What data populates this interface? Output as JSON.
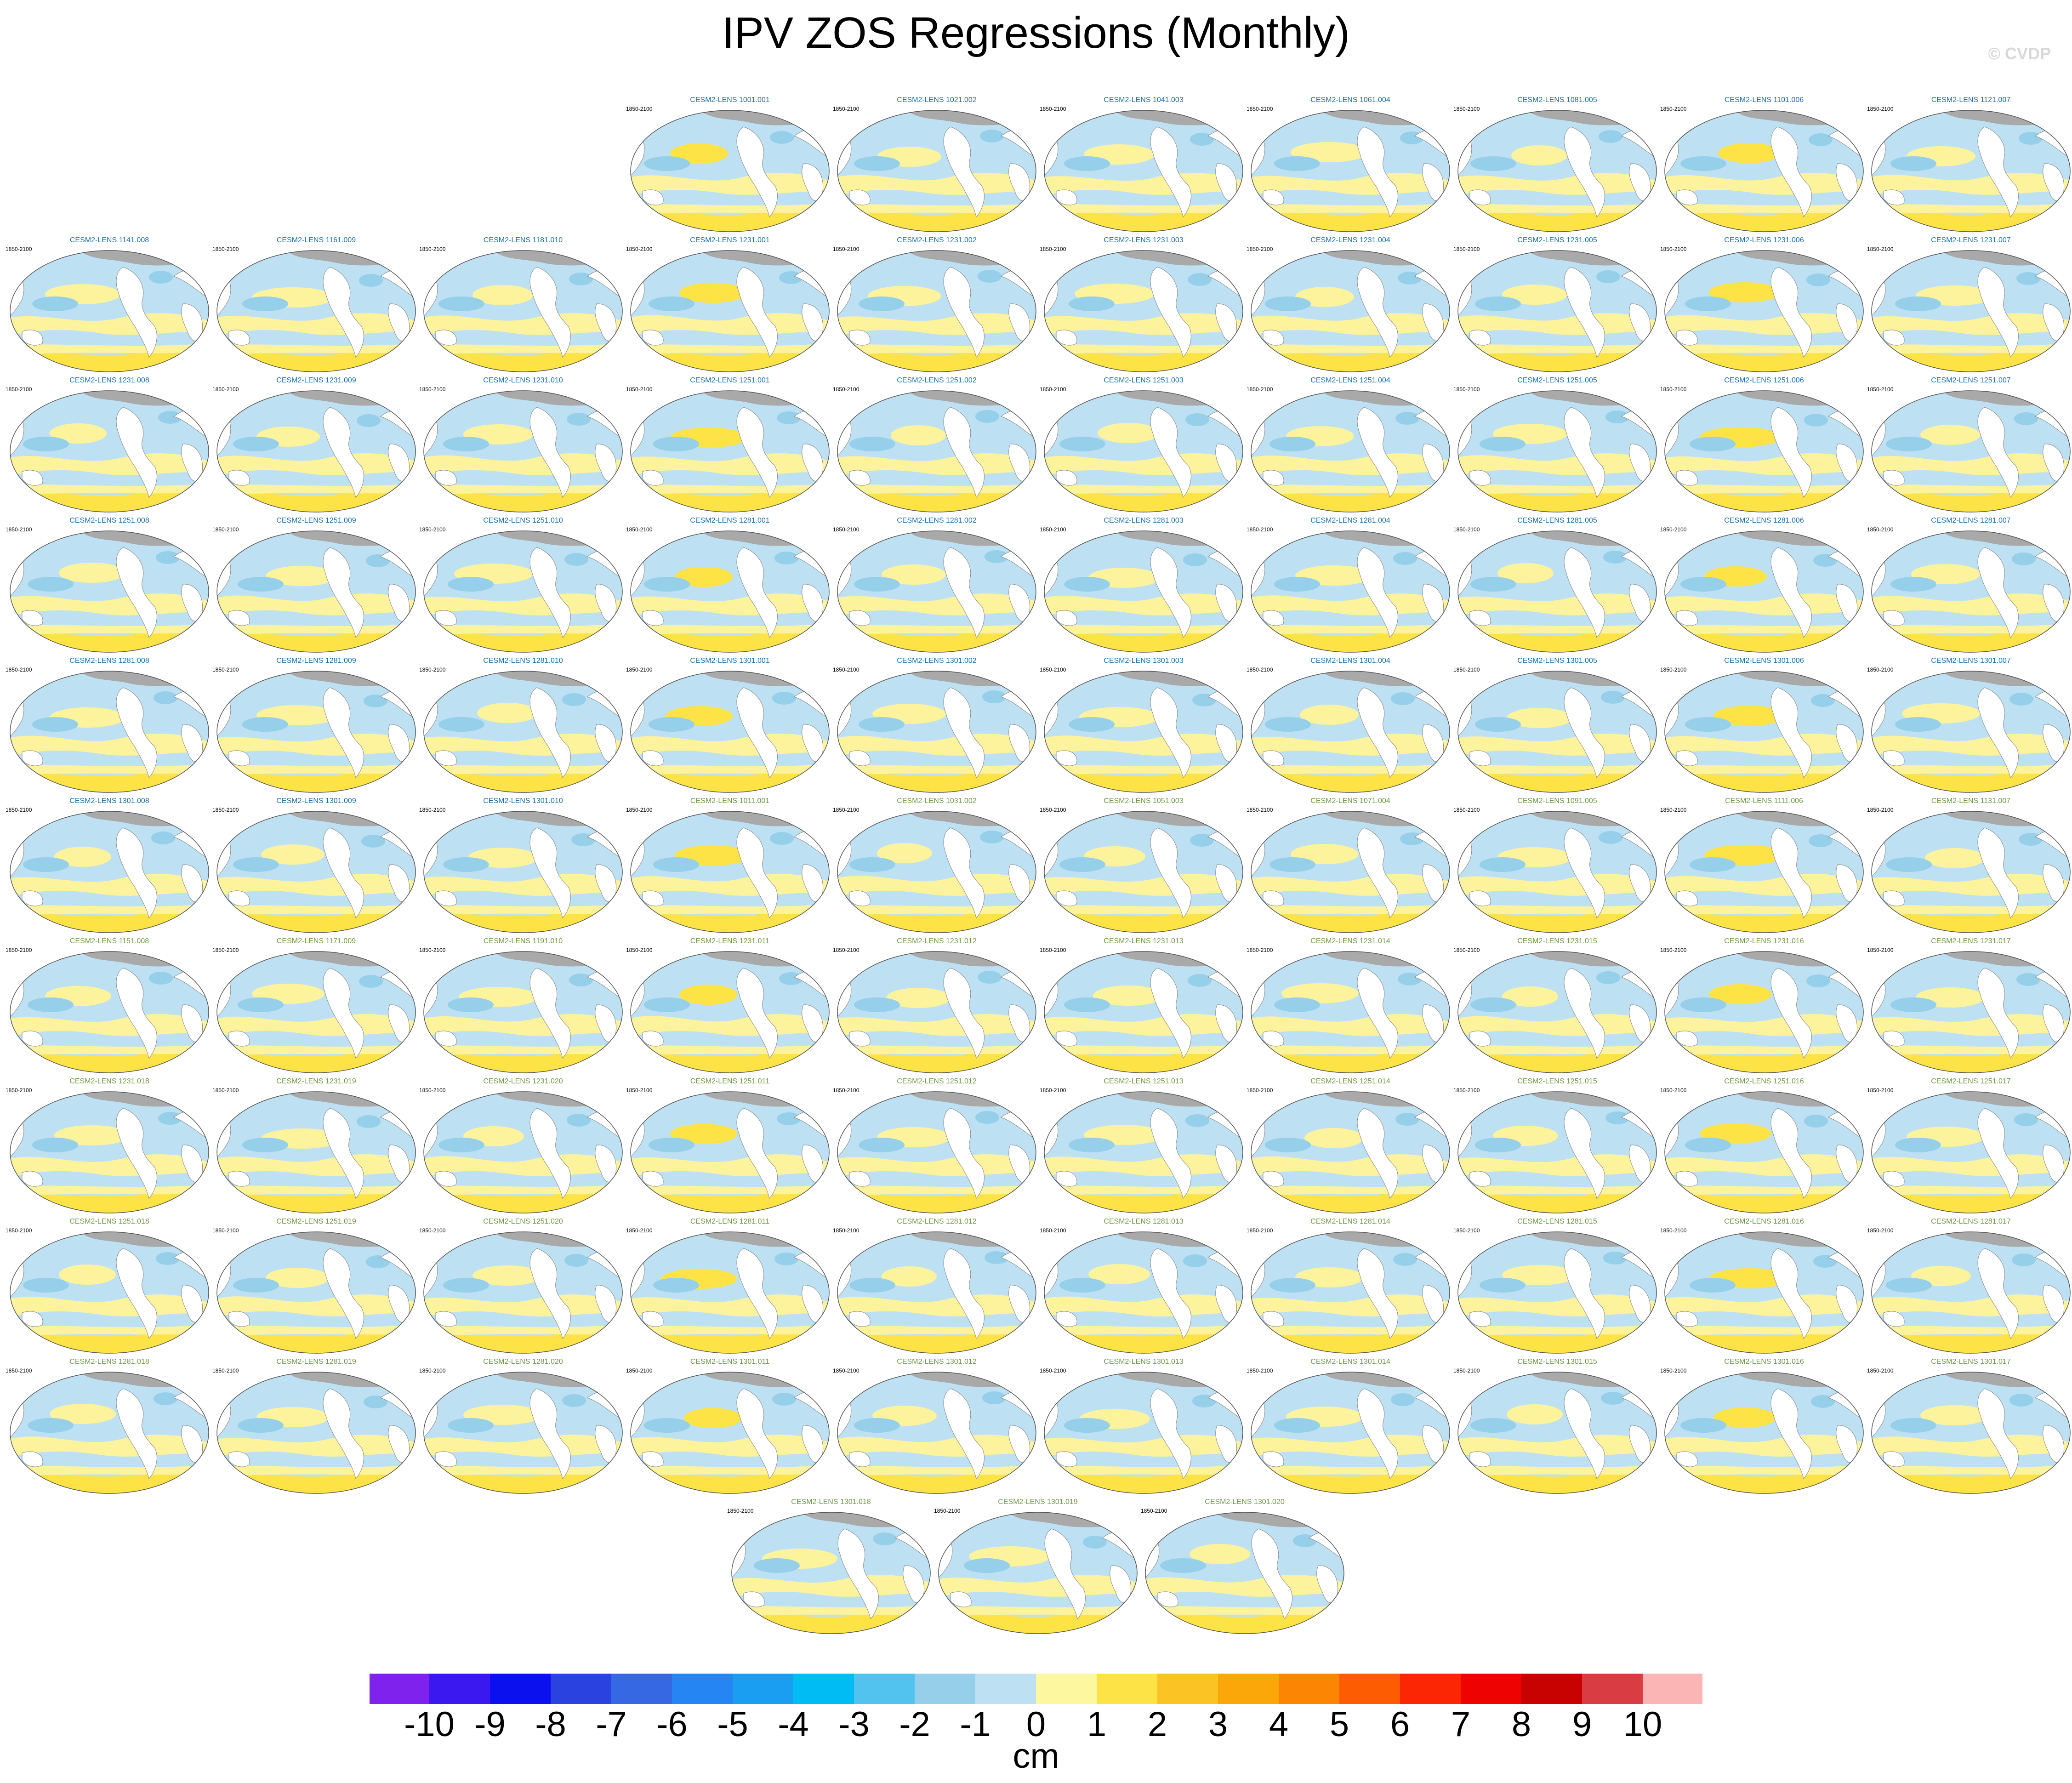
{
  "title": "IPV ZOS Regressions (Monthly)",
  "credit": "© CVDP",
  "period_label": "1850-2100",
  "title_colors": {
    "primary": "#1a6fae",
    "secondary": "#6e9a42"
  },
  "panel_rows": [
    [
      "CESM2-LENS 1001.001",
      "CESM2-LENS 1021.002",
      "CESM2-LENS 1041.003",
      "CESM2-LENS 1061.004",
      "CESM2-LENS 1081.005",
      "CESM2-LENS 1101.006",
      "CESM2-LENS 1121.007"
    ],
    [
      "CESM2-LENS 1141.008",
      "CESM2-LENS 1161.009",
      "CESM2-LENS 1181.010",
      "CESM2-LENS 1231.001",
      "CESM2-LENS 1231.002",
      "CESM2-LENS 1231.003",
      "CESM2-LENS 1231.004",
      "CESM2-LENS 1231.005",
      "CESM2-LENS 1231.006",
      "CESM2-LENS 1231.007"
    ],
    [
      "CESM2-LENS 1231.008",
      "CESM2-LENS 1231.009",
      "CESM2-LENS 1231.010",
      "CESM2-LENS 1251.001",
      "CESM2-LENS 1251.002",
      "CESM2-LENS 1251.003",
      "CESM2-LENS 1251.004",
      "CESM2-LENS 1251.005",
      "CESM2-LENS 1251.006",
      "CESM2-LENS 1251.007"
    ],
    [
      "CESM2-LENS 1251.008",
      "CESM2-LENS 1251.009",
      "CESM2-LENS 1251.010",
      "CESM2-LENS 1281.001",
      "CESM2-LENS 1281.002",
      "CESM2-LENS 1281.003",
      "CESM2-LENS 1281.004",
      "CESM2-LENS 1281.005",
      "CESM2-LENS 1281.006",
      "CESM2-LENS 1281.007"
    ],
    [
      "CESM2-LENS 1281.008",
      "CESM2-LENS 1281.009",
      "CESM2-LENS 1281.010",
      "CESM2-LENS 1301.001",
      "CESM2-LENS 1301.002",
      "CESM2-LENS 1301.003",
      "CESM2-LENS 1301.004",
      "CESM2-LENS 1301.005",
      "CESM2-LENS 1301.006",
      "CESM2-LENS 1301.007"
    ],
    [
      "CESM2-LENS 1301.008",
      "CESM2-LENS 1301.009",
      "CESM2-LENS 1301.010",
      "CESM2-LENS 1011.001",
      "CESM2-LENS 1031.002",
      "CESM2-LENS 1051.003",
      "CESM2-LENS 1071.004",
      "CESM2-LENS 1091.005",
      "CESM2-LENS 1111.006",
      "CESM2-LENS 1131.007"
    ],
    [
      "CESM2-LENS 1151.008",
      "CESM2-LENS 1171.009",
      "CESM2-LENS 1191.010",
      "CESM2-LENS 1231.011",
      "CESM2-LENS 1231.012",
      "CESM2-LENS 1231.013",
      "CESM2-LENS 1231.014",
      "CESM2-LENS 1231.015",
      "CESM2-LENS 1231.016",
      "CESM2-LENS 1231.017"
    ],
    [
      "CESM2-LENS 1231.018",
      "CESM2-LENS 1231.019",
      "CESM2-LENS 1231.020",
      "CESM2-LENS 1251.011",
      "CESM2-LENS 1251.012",
      "CESM2-LENS 1251.013",
      "CESM2-LENS 1251.014",
      "CESM2-LENS 1251.015",
      "CESM2-LENS 1251.016",
      "CESM2-LENS 1251.017"
    ],
    [
      "CESM2-LENS 1251.018",
      "CESM2-LENS 1251.019",
      "CESM2-LENS 1251.020",
      "CESM2-LENS 1281.011",
      "CESM2-LENS 1281.012",
      "CESM2-LENS 1281.013",
      "CESM2-LENS 1281.014",
      "CESM2-LENS 1281.015",
      "CESM2-LENS 1281.016",
      "CESM2-LENS 1281.017"
    ],
    [
      "CESM2-LENS 1281.018",
      "CESM2-LENS 1281.019",
      "CESM2-LENS 1281.020",
      "CESM2-LENS 1301.011",
      "CESM2-LENS 1301.012",
      "CESM2-LENS 1301.013",
      "CESM2-LENS 1301.014",
      "CESM2-LENS 1301.015",
      "CESM2-LENS 1301.016",
      "CESM2-LENS 1301.017"
    ],
    [
      "CESM2-LENS 1301.018",
      "CESM2-LENS 1301.019",
      "CESM2-LENS 1301.020"
    ]
  ],
  "colorbar": {
    "unit": "cm",
    "labels": [
      "-10",
      "-9",
      "-8",
      "-7",
      "-6",
      "-5",
      "-4",
      "-3",
      "-2",
      "-1",
      "0",
      "1",
      "2",
      "3",
      "4",
      "5",
      "6",
      "7",
      "8",
      "9",
      "10"
    ],
    "colors": [
      "#7f22ee",
      "#3b17f0",
      "#0a10ee",
      "#2a43e0",
      "#3568e2",
      "#2585f2",
      "#1a9ef2",
      "#00bcf4",
      "#52c2ef",
      "#96cfea",
      "#bde0f3",
      "#fdf8a0",
      "#fde346",
      "#fcc325",
      "#fba609",
      "#fc8503",
      "#fd5c03",
      "#fc2504",
      "#ee0202",
      "#c80101",
      "#d93d43",
      "#fcb5b5"
    ]
  },
  "map_colors": {
    "ocean_base": "#bde0f3",
    "positive": "#fdf39c",
    "positive_strong": "#fde346",
    "negative_strong": "#96cfea",
    "land": "#ffffff",
    "ice": "#a9a9a9"
  }
}
